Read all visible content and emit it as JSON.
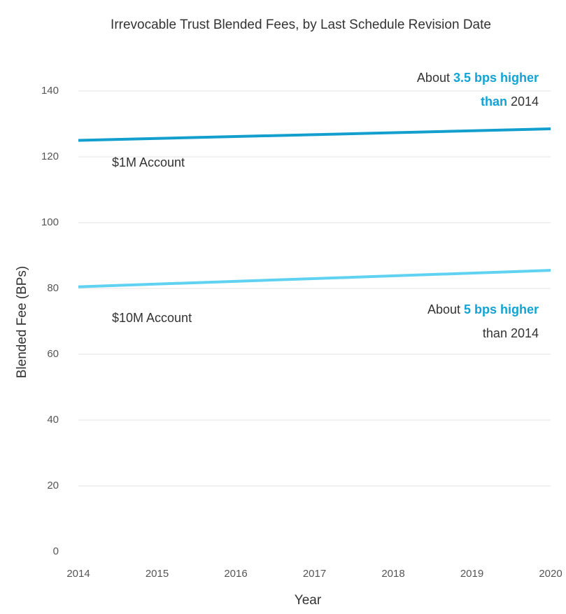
{
  "chart_data": {
    "type": "line",
    "title": "Irrevocable Trust Blended Fees, by Last Schedule Revision Date",
    "x_label": "Year",
    "y_label": "Blended Fee (BPs)",
    "x": [
      2014,
      2020
    ],
    "xlim": [
      2014,
      2020
    ],
    "xticks": [
      2014,
      2015,
      2016,
      2017,
      2018,
      2019,
      2020
    ],
    "ylim": [
      0,
      140
    ],
    "yticks": [
      0,
      20,
      40,
      60,
      80,
      100,
      120,
      140
    ],
    "grid": true,
    "series": [
      {
        "name": "$1M Account",
        "color": "#129fce",
        "values": [
          125,
          128.5
        ]
      },
      {
        "name": "$10M Account",
        "color": "#5fd2f2",
        "values": [
          80.5,
          85.5
        ]
      }
    ],
    "annotations": [
      {
        "highlight_color": "#12a3d2",
        "lines": [
          [
            {
              "text": "About "
            },
            {
              "text": "3.5 bps higher",
              "bold": true
            }
          ],
          [
            {
              "text": "than",
              "bold": true
            },
            {
              "text": " 2014"
            }
          ]
        ]
      },
      {
        "highlight_color": "#12a3d2",
        "lines": [
          [
            {
              "text": "About "
            },
            {
              "text": "5 bps higher",
              "bold": true
            }
          ],
          [
            {
              "text": "than 2014"
            }
          ]
        ]
      }
    ]
  }
}
